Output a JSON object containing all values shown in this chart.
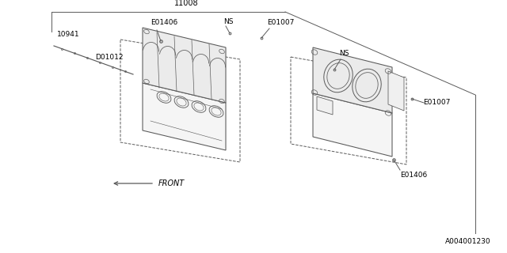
{
  "bg_color": "#ffffff",
  "line_color": "#5a5a5a",
  "label_color": "#000000",
  "figsize": [
    6.4,
    3.2
  ],
  "dpi": 100,
  "part_number_top": "11008",
  "diagram_id": "A004001230",
  "front_label": "FRONT"
}
